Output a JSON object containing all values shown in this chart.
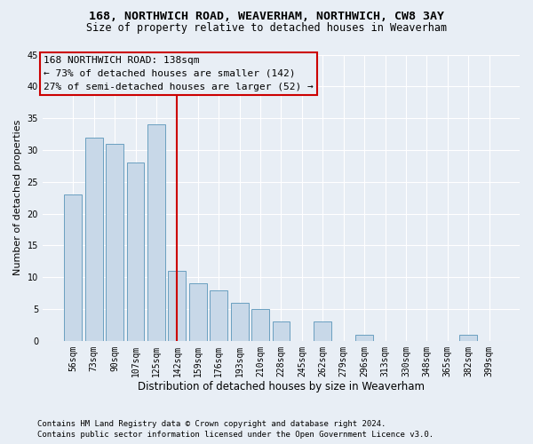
{
  "title": "168, NORTHWICH ROAD, WEAVERHAM, NORTHWICH, CW8 3AY",
  "subtitle": "Size of property relative to detached houses in Weaverham",
  "xlabel": "Distribution of detached houses by size in Weaverham",
  "ylabel": "Number of detached properties",
  "categories": [
    "56sqm",
    "73sqm",
    "90sqm",
    "107sqm",
    "125sqm",
    "142sqm",
    "159sqm",
    "176sqm",
    "193sqm",
    "210sqm",
    "228sqm",
    "245sqm",
    "262sqm",
    "279sqm",
    "296sqm",
    "313sqm",
    "330sqm",
    "348sqm",
    "365sqm",
    "382sqm",
    "399sqm"
  ],
  "values": [
    23,
    32,
    31,
    28,
    34,
    11,
    9,
    8,
    6,
    5,
    3,
    0,
    3,
    0,
    1,
    0,
    0,
    0,
    0,
    1,
    0
  ],
  "bar_color": "#c8d8e8",
  "bar_edge_color": "#6a9fc0",
  "annotation_line0": "168 NORTHWICH ROAD: 138sqm",
  "annotation_line1": "← 73% of detached houses are smaller (142)",
  "annotation_line2": "27% of semi-detached houses are larger (52) →",
  "vline_x_index": 5,
  "vline_color": "#cc0000",
  "ylim": [
    0,
    45
  ],
  "yticks": [
    0,
    5,
    10,
    15,
    20,
    25,
    30,
    35,
    40,
    45
  ],
  "bg_color": "#e8eef5",
  "grid_color": "#ffffff",
  "footnote1": "Contains HM Land Registry data © Crown copyright and database right 2024.",
  "footnote2": "Contains public sector information licensed under the Open Government Licence v3.0.",
  "title_fontsize": 9.5,
  "subtitle_fontsize": 8.5,
  "xlabel_fontsize": 8.5,
  "ylabel_fontsize": 8,
  "tick_fontsize": 7,
  "annotation_fontsize": 8,
  "footnote_fontsize": 6.5
}
